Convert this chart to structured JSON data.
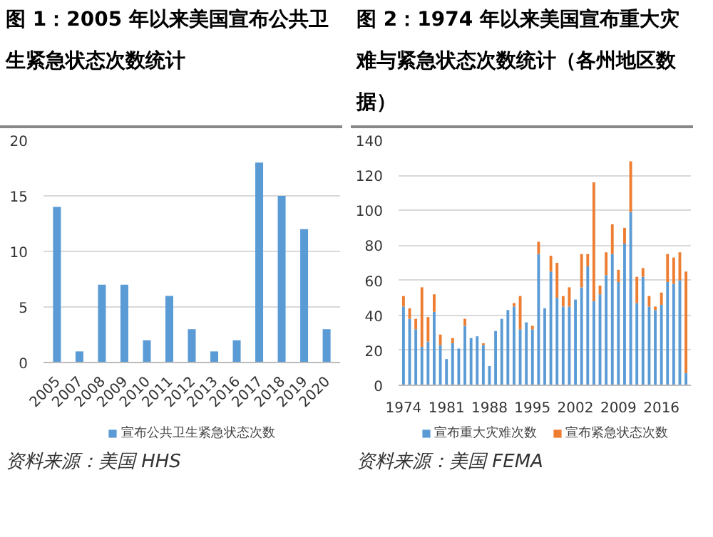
{
  "chart_data": [
    {
      "type": "bar",
      "title": "图 1：2005 年以来美国宣布公共卫生紧急状态次数统计",
      "categories": [
        "2005",
        "2007",
        "2008",
        "2009",
        "2010",
        "2011",
        "2012",
        "2013",
        "2016",
        "2017",
        "2018",
        "2019",
        "2020"
      ],
      "series": [
        {
          "name": "宣布公共卫生紧急状态次数",
          "color": "#5b9bd5",
          "values": [
            14,
            1,
            7,
            7,
            2,
            6,
            3,
            1,
            2,
            18,
            15,
            12,
            3
          ]
        }
      ],
      "ylim": [
        0,
        20
      ],
      "yticks": [
        0,
        5,
        10,
        15,
        20
      ],
      "grid": "y",
      "legend": "bottom",
      "annotations": [
        "资料来源：美国 HHS"
      ]
    },
    {
      "type": "bar",
      "stacked": true,
      "title": "图 2：1974 年以来美国宣布重大灾难与紧急状态次数统计（各州地区数据）",
      "x": [
        1974,
        1975,
        1976,
        1977,
        1978,
        1979,
        1980,
        1981,
        1982,
        1983,
        1984,
        1985,
        1986,
        1987,
        1988,
        1989,
        1990,
        1991,
        1992,
        1993,
        1994,
        1995,
        1996,
        1997,
        1998,
        1999,
        2000,
        2001,
        2002,
        2003,
        2004,
        2005,
        2006,
        2007,
        2008,
        2009,
        2010,
        2011,
        2012,
        2013,
        2014,
        2015,
        2016,
        2017,
        2018,
        2019,
        2020
      ],
      "series": [
        {
          "name": "宣布重大灾难次数",
          "color": "#5b9bd5",
          "values": [
            45,
            38,
            32,
            22,
            25,
            42,
            23,
            15,
            24,
            21,
            34,
            27,
            28,
            23,
            11,
            31,
            38,
            43,
            45,
            32,
            36,
            32,
            75,
            44,
            65,
            50,
            45,
            45,
            49,
            56,
            68,
            48,
            52,
            63,
            75,
            59,
            81,
            99,
            47,
            62,
            45,
            43,
            46,
            59,
            58,
            60,
            7
          ]
        },
        {
          "name": "宣布紧急状态次数",
          "color": "#ed7d31",
          "values": [
            6,
            6,
            6,
            34,
            14,
            10,
            6,
            0,
            3,
            0,
            4,
            0,
            0,
            1,
            0,
            0,
            0,
            0,
            2,
            19,
            0,
            2,
            7,
            0,
            9,
            20,
            6,
            11,
            0,
            19,
            7,
            68,
            5,
            13,
            17,
            7,
            9,
            29,
            15,
            5,
            6,
            2,
            7,
            16,
            15,
            16,
            58
          ]
        }
      ],
      "xlim": [
        1973.2,
        2020.8
      ],
      "xticks": [
        1974,
        1981,
        1988,
        1995,
        2002,
        2009,
        2016
      ],
      "ylim": [
        0,
        140
      ],
      "yticks": [
        0,
        20,
        40,
        60,
        80,
        100,
        120,
        140
      ],
      "grid": "y",
      "legend": "bottom",
      "annotations": [
        "资料来源：美国 FEMA"
      ]
    }
  ]
}
